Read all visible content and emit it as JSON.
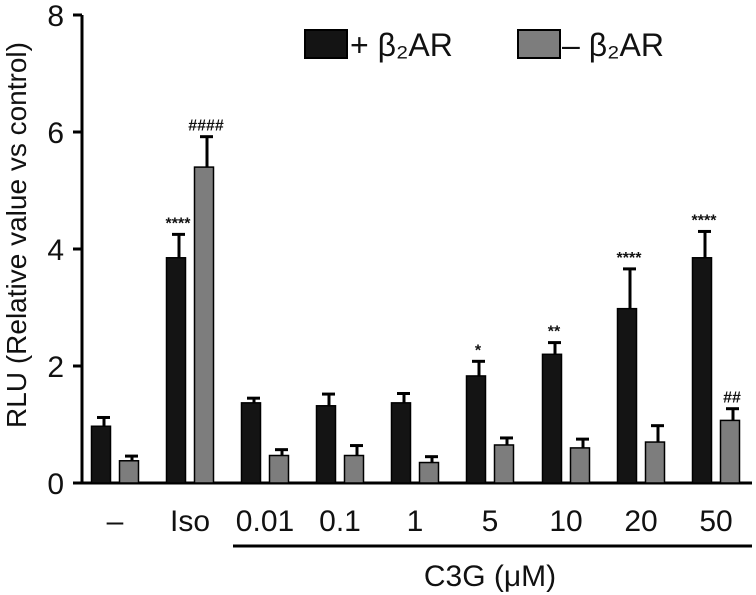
{
  "chart_data": {
    "type": "bar",
    "ylabel": "RLU (Relative value vs control)",
    "xlabel": "C3G (μM)",
    "ylim": [
      0,
      8
    ],
    "yticks": [
      0,
      2,
      4,
      6,
      8
    ],
    "categories": [
      "–",
      "Iso",
      "0.01",
      "0.1",
      "1",
      "5",
      "10",
      "20",
      "50"
    ],
    "legend": {
      "position": "top-right"
    },
    "series": [
      {
        "name": "+ β₂AR",
        "color": "#141414",
        "values": [
          0.97,
          3.85,
          1.37,
          1.32,
          1.37,
          1.83,
          2.2,
          2.98,
          3.85
        ],
        "errors": [
          0.15,
          0.4,
          0.08,
          0.2,
          0.16,
          0.25,
          0.2,
          0.68,
          0.45
        ],
        "annotations": [
          "",
          "****",
          "",
          "",
          "",
          "*",
          "**",
          "****",
          "****"
        ]
      },
      {
        "name": "– β₂AR",
        "color": "#7d7d7d",
        "values": [
          0.38,
          5.4,
          0.47,
          0.47,
          0.35,
          0.65,
          0.6,
          0.7,
          1.07
        ],
        "errors": [
          0.08,
          0.52,
          0.1,
          0.17,
          0.1,
          0.12,
          0.15,
          0.28,
          0.2
        ],
        "annotations": [
          "",
          "####",
          "",
          "",
          "",
          "",
          "",
          "",
          "##"
        ]
      }
    ]
  }
}
